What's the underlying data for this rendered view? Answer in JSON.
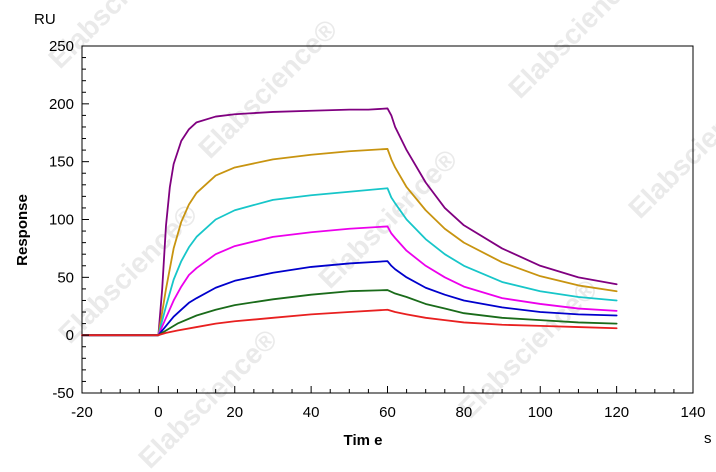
{
  "chart_data": {
    "type": "line",
    "title": "",
    "xlabel": "Tim e",
    "ylabel": "Response",
    "x_unit": "s",
    "y_unit": "RU",
    "xlim": [
      -20,
      140
    ],
    "ylim": [
      -50,
      250
    ],
    "x_ticks": [
      -20,
      0,
      20,
      40,
      60,
      80,
      100,
      120,
      140
    ],
    "y_ticks": [
      -50,
      0,
      50,
      100,
      150,
      200,
      250
    ],
    "x_tick_labels": [
      "-20",
      "0",
      "20",
      "40",
      "60",
      "80",
      "100",
      "120",
      "140"
    ],
    "y_tick_labels": [
      "-50",
      "0",
      "50",
      "100",
      "150",
      "200",
      "250"
    ],
    "grid": false,
    "legend": "none",
    "watermark_text": "Elabscience®",
    "series": [
      {
        "color": "#800080",
        "points": [
          [
            -20,
            0
          ],
          [
            0,
            0
          ],
          [
            1,
            40
          ],
          [
            2,
            95
          ],
          [
            3,
            128
          ],
          [
            4,
            148
          ],
          [
            6,
            168
          ],
          [
            8,
            178
          ],
          [
            10,
            184
          ],
          [
            15,
            189
          ],
          [
            20,
            191
          ],
          [
            30,
            193
          ],
          [
            40,
            194
          ],
          [
            50,
            195
          ],
          [
            55,
            195
          ],
          [
            60,
            196
          ],
          [
            61,
            190
          ],
          [
            62,
            180
          ],
          [
            65,
            160
          ],
          [
            70,
            132
          ],
          [
            75,
            110
          ],
          [
            80,
            95
          ],
          [
            90,
            75
          ],
          [
            100,
            60
          ],
          [
            110,
            50
          ],
          [
            120,
            44
          ]
        ]
      },
      {
        "color": "#c89410",
        "points": [
          [
            -20,
            0
          ],
          [
            0,
            0
          ],
          [
            2,
            40
          ],
          [
            4,
            75
          ],
          [
            6,
            98
          ],
          [
            8,
            113
          ],
          [
            10,
            123
          ],
          [
            15,
            138
          ],
          [
            20,
            145
          ],
          [
            30,
            152
          ],
          [
            40,
            156
          ],
          [
            50,
            159
          ],
          [
            60,
            161
          ],
          [
            61,
            152
          ],
          [
            62,
            145
          ],
          [
            65,
            128
          ],
          [
            70,
            108
          ],
          [
            75,
            92
          ],
          [
            80,
            80
          ],
          [
            90,
            63
          ],
          [
            100,
            51
          ],
          [
            110,
            43
          ],
          [
            120,
            38
          ]
        ]
      },
      {
        "color": "#17c6c9",
        "points": [
          [
            -20,
            0
          ],
          [
            0,
            0
          ],
          [
            2,
            25
          ],
          [
            4,
            48
          ],
          [
            6,
            64
          ],
          [
            8,
            76
          ],
          [
            10,
            85
          ],
          [
            15,
            100
          ],
          [
            20,
            108
          ],
          [
            30,
            117
          ],
          [
            40,
            121
          ],
          [
            50,
            124
          ],
          [
            60,
            127
          ],
          [
            61,
            119
          ],
          [
            62,
            114
          ],
          [
            65,
            100
          ],
          [
            70,
            83
          ],
          [
            75,
            70
          ],
          [
            80,
            60
          ],
          [
            90,
            46
          ],
          [
            100,
            38
          ],
          [
            110,
            33
          ],
          [
            120,
            30
          ]
        ]
      },
      {
        "color": "#ec00ec",
        "points": [
          [
            -20,
            0
          ],
          [
            0,
            0
          ],
          [
            2,
            15
          ],
          [
            4,
            30
          ],
          [
            6,
            42
          ],
          [
            8,
            52
          ],
          [
            10,
            58
          ],
          [
            15,
            70
          ],
          [
            20,
            77
          ],
          [
            30,
            85
          ],
          [
            40,
            89
          ],
          [
            50,
            92
          ],
          [
            60,
            94
          ],
          [
            61,
            88
          ],
          [
            62,
            84
          ],
          [
            65,
            73
          ],
          [
            70,
            60
          ],
          [
            75,
            50
          ],
          [
            80,
            42
          ],
          [
            90,
            32
          ],
          [
            100,
            27
          ],
          [
            110,
            23
          ],
          [
            120,
            21
          ]
        ]
      },
      {
        "color": "#0000cc",
        "points": [
          [
            -20,
            0
          ],
          [
            0,
            0
          ],
          [
            2,
            8
          ],
          [
            4,
            16
          ],
          [
            6,
            22
          ],
          [
            8,
            28
          ],
          [
            10,
            32
          ],
          [
            15,
            41
          ],
          [
            20,
            47
          ],
          [
            30,
            54
          ],
          [
            40,
            59
          ],
          [
            50,
            62
          ],
          [
            60,
            64
          ],
          [
            61,
            60
          ],
          [
            62,
            57
          ],
          [
            65,
            50
          ],
          [
            70,
            41
          ],
          [
            75,
            35
          ],
          [
            80,
            30
          ],
          [
            90,
            24
          ],
          [
            100,
            20
          ],
          [
            110,
            18
          ],
          [
            120,
            17
          ]
        ]
      },
      {
        "color": "#1a6b1a",
        "points": [
          [
            -20,
            0
          ],
          [
            0,
            0
          ],
          [
            2,
            4
          ],
          [
            5,
            10
          ],
          [
            10,
            17
          ],
          [
            15,
            22
          ],
          [
            20,
            26
          ],
          [
            30,
            31
          ],
          [
            40,
            35
          ],
          [
            50,
            38
          ],
          [
            60,
            39
          ],
          [
            62,
            36
          ],
          [
            65,
            33
          ],
          [
            70,
            27
          ],
          [
            75,
            23
          ],
          [
            80,
            19
          ],
          [
            90,
            15
          ],
          [
            100,
            13
          ],
          [
            110,
            11
          ],
          [
            120,
            10
          ]
        ]
      },
      {
        "color": "#e82020",
        "points": [
          [
            -20,
            0
          ],
          [
            0,
            0
          ],
          [
            2,
            2
          ],
          [
            5,
            4
          ],
          [
            10,
            7
          ],
          [
            15,
            10
          ],
          [
            20,
            12
          ],
          [
            30,
            15
          ],
          [
            40,
            18
          ],
          [
            50,
            20
          ],
          [
            60,
            22
          ],
          [
            62,
            20
          ],
          [
            65,
            18
          ],
          [
            70,
            15
          ],
          [
            75,
            13
          ],
          [
            80,
            11
          ],
          [
            90,
            9
          ],
          [
            100,
            8
          ],
          [
            110,
            7
          ],
          [
            120,
            6
          ]
        ]
      }
    ]
  }
}
